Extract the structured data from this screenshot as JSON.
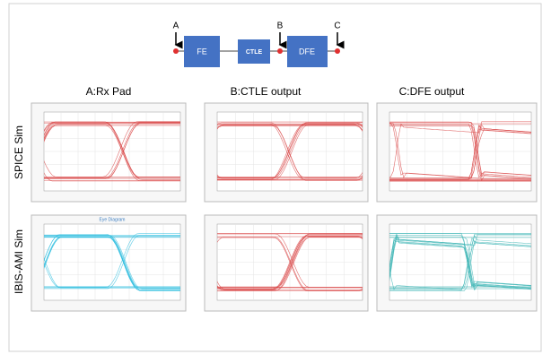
{
  "block_diagram": {
    "nodes": [
      {
        "label": "FE"
      },
      {
        "label": "CTLE"
      },
      {
        "label": "DFE"
      }
    ],
    "probes": [
      {
        "label": "A"
      },
      {
        "label": "B"
      },
      {
        "label": "C"
      }
    ]
  },
  "columns": [
    "A:Rx Pad",
    "B:CTLE output",
    "C:DFE output"
  ],
  "rows": [
    "SPICE Sim",
    "IBIS-AMI Sim"
  ],
  "panel_titles": {
    "ibis_rx": "Eye Diagram"
  }
}
